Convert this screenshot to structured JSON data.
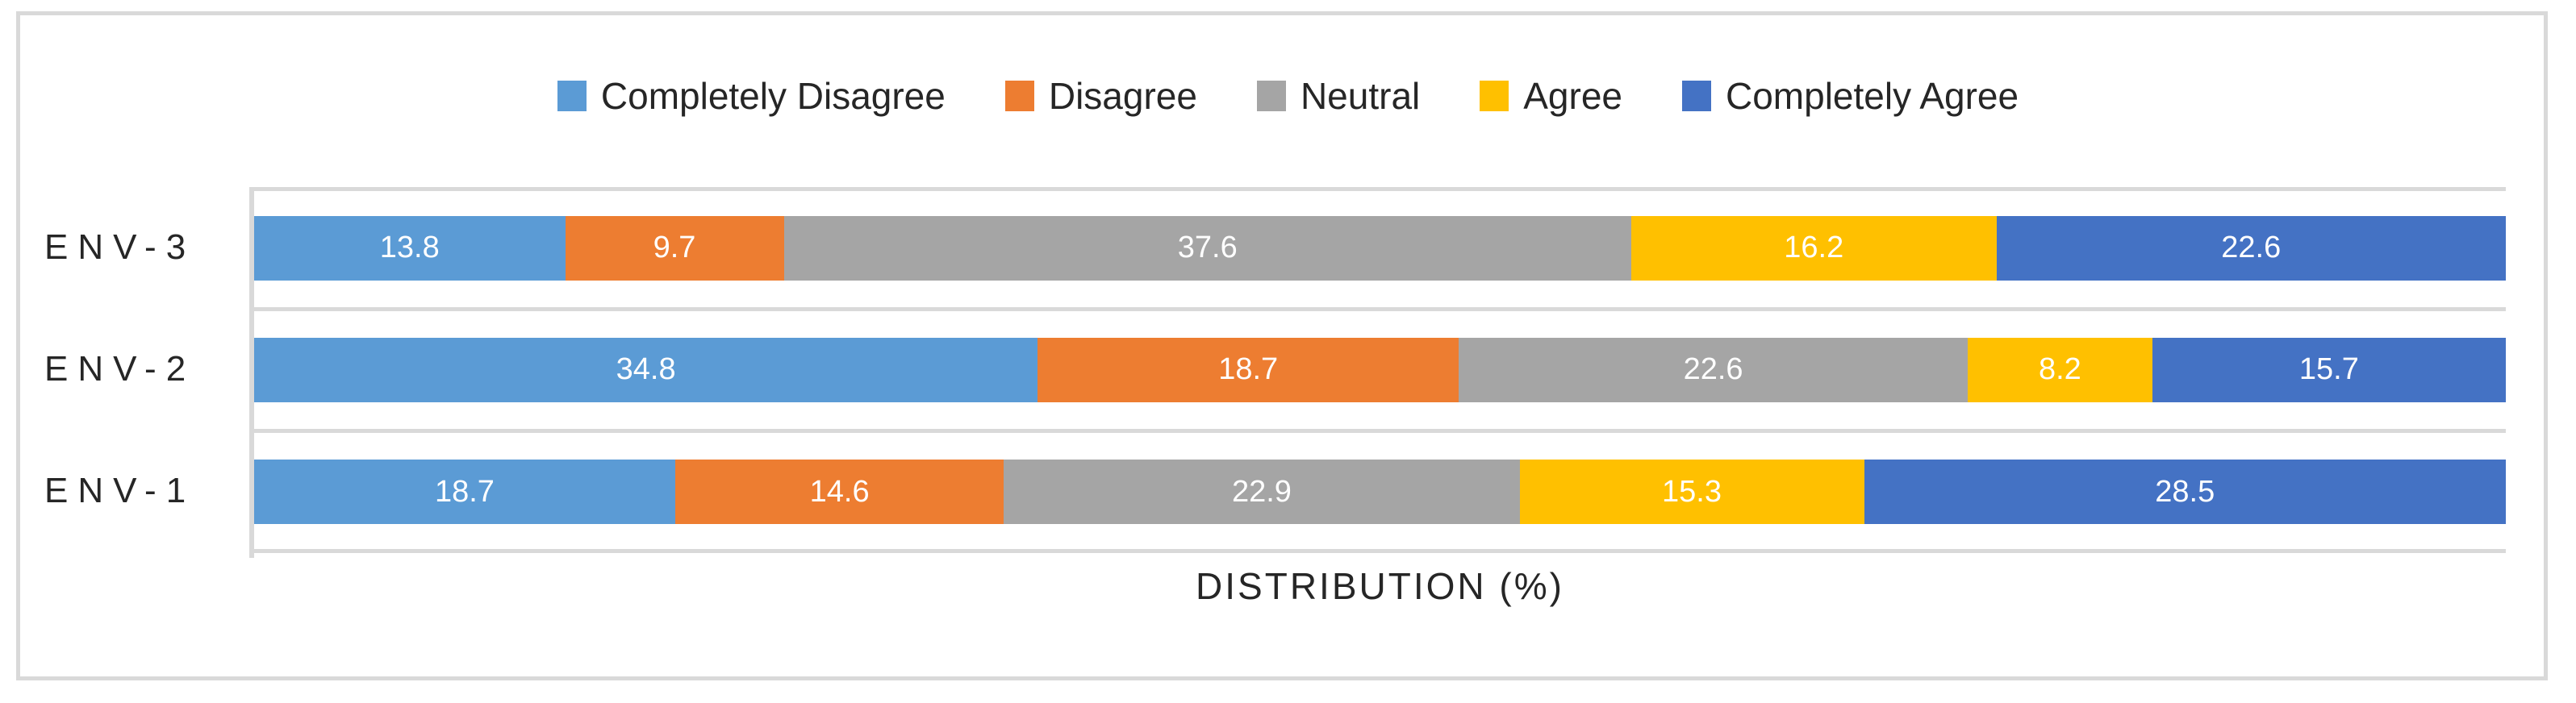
{
  "chart_data": {
    "type": "bar",
    "orientation": "horizontal-stacked",
    "categories": [
      "ENV-3",
      "ENV-2",
      "ENV-1"
    ],
    "series": [
      {
        "name": "Completely Disagree",
        "color": "#5B9BD5",
        "values": [
          13.8,
          34.8,
          18.7
        ]
      },
      {
        "name": "Disagree",
        "color": "#ED7D31",
        "values": [
          9.7,
          18.7,
          14.6
        ]
      },
      {
        "name": "Neutral",
        "color": "#A5A5A5",
        "values": [
          37.6,
          22.6,
          22.9
        ]
      },
      {
        "name": "Agree",
        "color": "#FFC000",
        "values": [
          16.2,
          8.2,
          15.3
        ]
      },
      {
        "name": "Completely Agree",
        "color": "#4472C4",
        "values": [
          22.6,
          15.7,
          28.5
        ]
      }
    ],
    "xlabel": "DISTRIBUTION (%)",
    "xlim": [
      0,
      100
    ],
    "legend_position": "top",
    "grid": "category-boundaries",
    "value_labels": "white, centered in segments"
  },
  "colors": {
    "frame_border": "#D9D9D9",
    "gridline": "#D9D9D9",
    "text": "#262626",
    "value_label_text": "#FFFFFF",
    "background": "#FFFFFF"
  }
}
